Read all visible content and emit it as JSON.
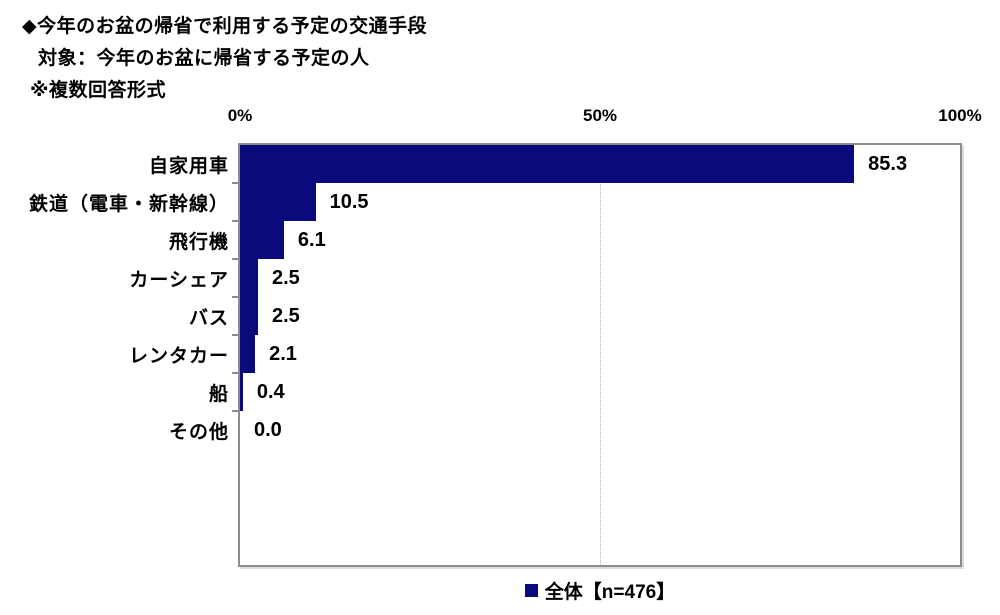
{
  "header": {
    "title": "◆今年のお盆の帰省で利用する予定の交通手段",
    "subtitle": "対象：今年のお盆に帰省する予定の人",
    "note": "※複数回答形式"
  },
  "colors": {
    "bar": "#0a0a7d",
    "plot_border": "#8c8c8c",
    "gridline": "#b4b4b4"
  },
  "legend": {
    "swatch": "square-icon",
    "label": "全体【n=476】"
  },
  "chart_data": {
    "type": "bar",
    "orientation": "horizontal",
    "title": "今年のお盆の帰省で利用する予定の交通手段",
    "categories": [
      "自家用車",
      "鉄道（電車・新幹線）",
      "飛行機",
      "カーシェア",
      "バス",
      "レンタカー",
      "船",
      "その他"
    ],
    "values": [
      85.3,
      10.5,
      6.1,
      2.5,
      2.5,
      2.1,
      0.4,
      0.0
    ],
    "value_labels": [
      "85.3",
      "10.5",
      "6.1",
      "2.5",
      "2.5",
      "2.1",
      "0.4",
      "0.0"
    ],
    "xlim": [
      0,
      100
    ],
    "x_tick_labels": [
      "0%",
      "50%",
      "100%"
    ],
    "x_tick_positions": [
      0,
      50,
      100
    ],
    "grid": "vertical dotted line at 50%",
    "legend_entries": [
      "全体【n=476】"
    ],
    "legend_position": "bottom-center",
    "axis_labels_position": "top"
  }
}
